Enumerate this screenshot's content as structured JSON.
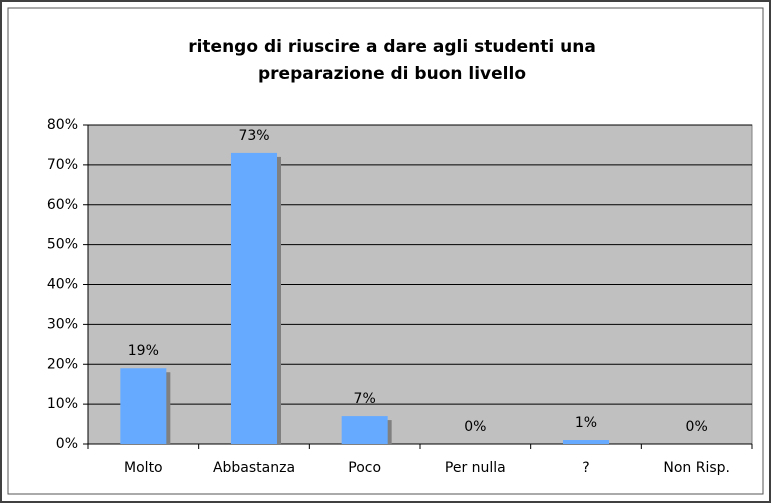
{
  "chart_data": {
    "type": "bar",
    "title": [
      "ritengo di riuscire a dare agli studenti una",
      "preparazione di buon livello"
    ],
    "categories": [
      "Molto",
      "Abbastanza",
      "Poco",
      "Per nulla",
      "?",
      "Non Risp."
    ],
    "values": [
      19,
      73,
      7,
      0,
      1,
      0
    ],
    "value_labels": [
      "19%",
      "73%",
      "7%",
      "0%",
      "1%",
      "0%"
    ],
    "color": "#66aaff",
    "ylim": [
      0,
      80
    ],
    "yticks": [
      {
        "value": 0,
        "label": "0%"
      },
      {
        "value": 10,
        "label": "10%"
      },
      {
        "value": 20,
        "label": "20%"
      },
      {
        "value": 30,
        "label": "30%"
      },
      {
        "value": 40,
        "label": "40%"
      },
      {
        "value": 50,
        "label": "50%"
      },
      {
        "value": 60,
        "label": "60%"
      },
      {
        "value": 70,
        "label": "70%"
      },
      {
        "value": 80,
        "label": "80%"
      }
    ],
    "grid": true
  }
}
